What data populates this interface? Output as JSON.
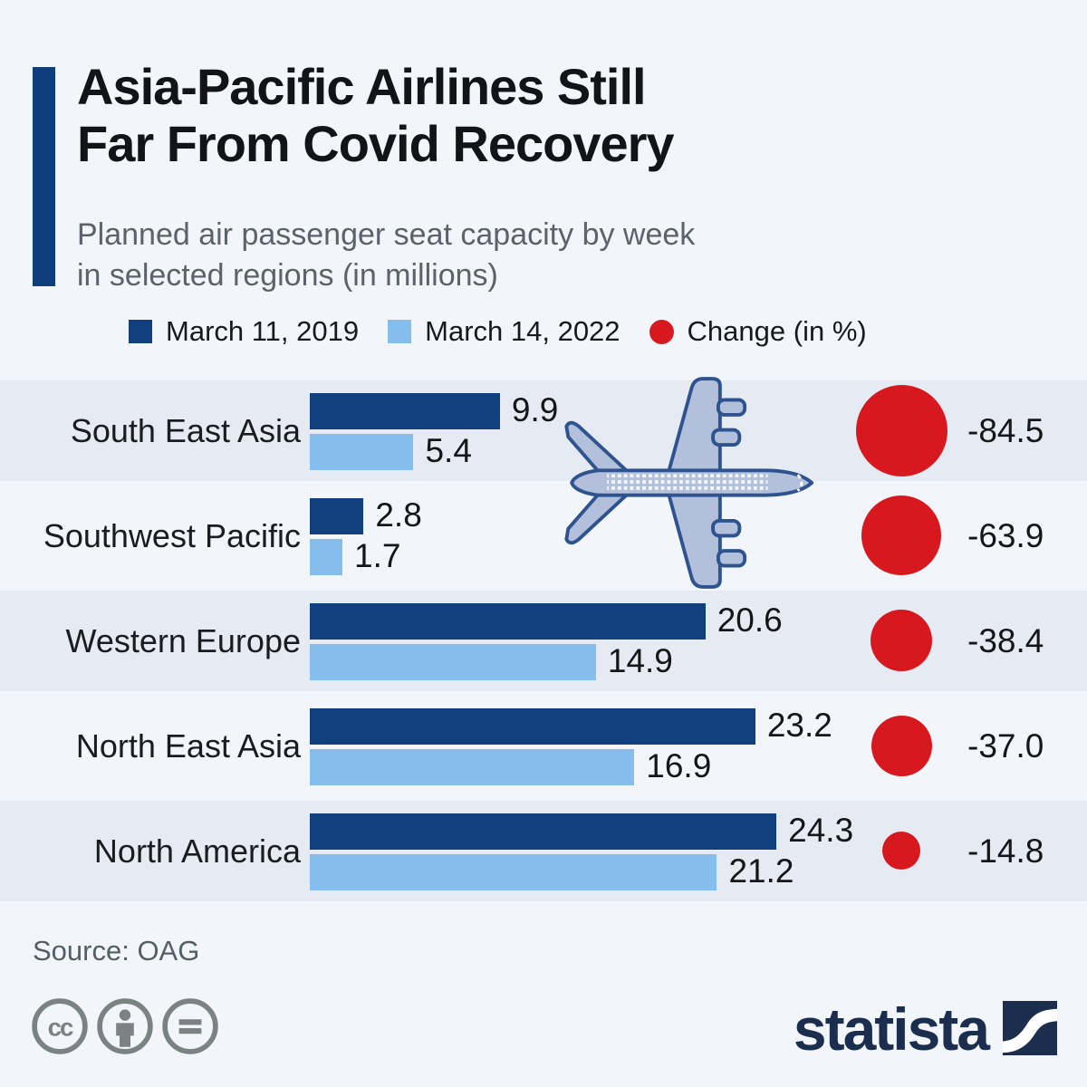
{
  "header": {
    "title_line1": "Asia-Pacific Airlines Still",
    "title_line2": "Far From Covid Recovery",
    "subtitle_line1": "Planned air passenger seat capacity by week",
    "subtitle_line2": "in selected regions (in millions)"
  },
  "legend": {
    "items": [
      {
        "label": "March 11, 2019",
        "color": "#12407e",
        "shape": "square"
      },
      {
        "label": "March 14, 2022",
        "color": "#85bdec",
        "shape": "square"
      },
      {
        "label": "Change (in %)",
        "color": "#d7191f",
        "shape": "circle"
      }
    ]
  },
  "chart_data": {
    "type": "bar",
    "orientation": "horizontal",
    "title": "Asia-Pacific Airlines Still Far From Covid Recovery",
    "subtitle": "Planned air passenger seat capacity by week in selected regions (in millions)",
    "categories": [
      "South East Asia",
      "Southwest Pacific",
      "Western Europe",
      "North East Asia",
      "North America"
    ],
    "series": [
      {
        "name": "March 11, 2019",
        "color": "#12407e",
        "values": [
          9.9,
          2.8,
          20.6,
          23.2,
          24.3
        ]
      },
      {
        "name": "March 14, 2022",
        "color": "#85bdec",
        "values": [
          5.4,
          1.7,
          14.9,
          16.9,
          21.2
        ]
      }
    ],
    "change_series": {
      "name": "Change (in %)",
      "color": "#d7191f",
      "values": [
        "-84.5",
        "-63.9",
        "-38.4",
        "-37.0",
        "-14.8"
      ]
    },
    "value_axis_max": 24.3,
    "grid": false,
    "legend_position": "top",
    "banded_rows": [
      0,
      2,
      4
    ]
  },
  "footer": {
    "source": "Source: OAG",
    "license_icons": [
      "cc-icon",
      "cc-attribution-icon",
      "cc-equals-icon"
    ],
    "brand": "statista"
  }
}
